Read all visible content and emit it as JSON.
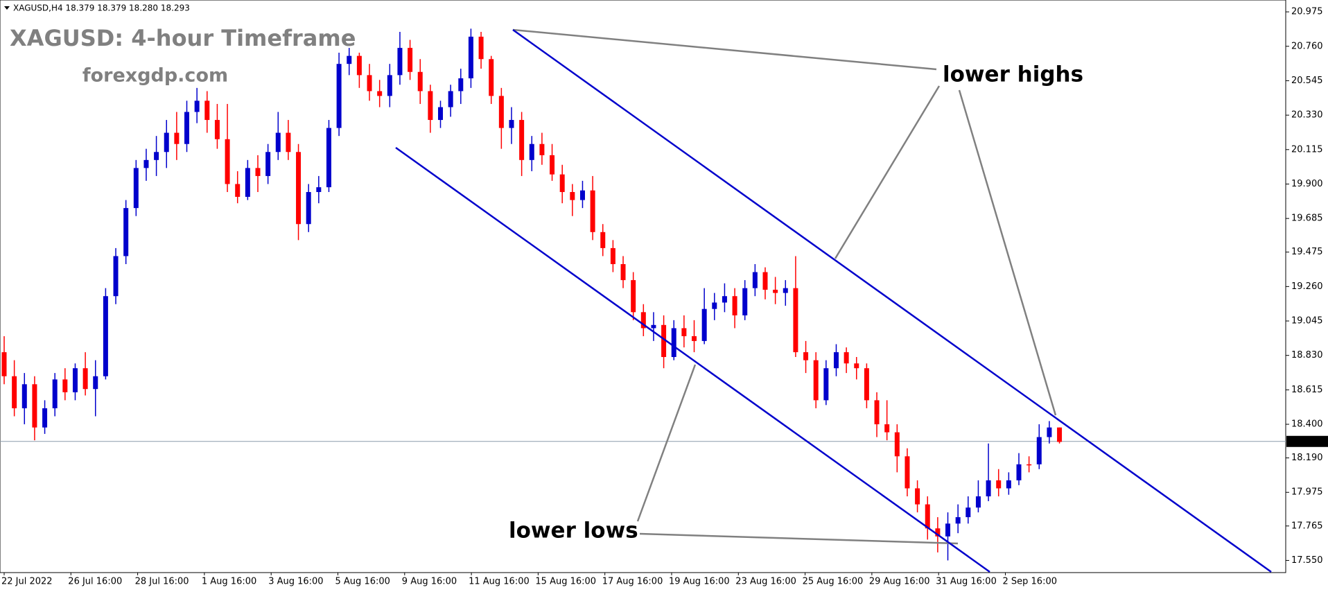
{
  "chart_data": {
    "type": "candlestick",
    "header": "XAGUSD,H4  18.379 18.379 18.280 18.293",
    "title": "XAGUSD: 4-hour Timeframe",
    "subtitle": "forexgdp.com",
    "annotations": [
      "lower highs",
      "lower lows"
    ],
    "up_color": "#0000cc",
    "down_color": "#ff0000",
    "last_price": 18.293,
    "ylim": [
      17.474,
      21.049
    ],
    "yticks": [
      20.975,
      {
        "value": 20.76,
        "label": "20.760"
      },
      20.545,
      {
        "value": 20.33,
        "label": "20.330"
      },
      20.115,
      {
        "value": 19.9,
        "label": "19.900"
      },
      19.685,
      19.475,
      {
        "value": 19.26,
        "label": "19.260"
      },
      19.045,
      {
        "value": 18.83,
        "label": "18.830"
      },
      18.615,
      {
        "value": 18.4,
        "label": "18.400"
      },
      {
        "value": 18.19,
        "label": "18.190"
      },
      17.975,
      17.765,
      {
        "value": 17.55,
        "label": "17.550"
      }
    ],
    "xlabels": [
      "22 Jul 2022",
      "26 Jul 16:00",
      "28 Jul 16:00",
      "1 Aug 16:00",
      "3 Aug 16:00",
      "5 Aug 16:00",
      "9 Aug 16:00",
      "11 Aug 16:00",
      "15 Aug 16:00",
      "17 Aug 16:00",
      "19 Aug 16:00",
      "23 Aug 16:00",
      "25 Aug 16:00",
      "29 Aug 16:00",
      "31 Aug 16:00",
      "2 Sep 16:00"
    ],
    "candles": [
      [
        18.85,
        18.95,
        18.65,
        18.7
      ],
      [
        18.7,
        18.8,
        18.45,
        18.5
      ],
      [
        18.5,
        18.72,
        18.4,
        18.65
      ],
      [
        18.65,
        18.7,
        18.3,
        18.38
      ],
      [
        18.38,
        18.55,
        18.34,
        18.5
      ],
      [
        18.5,
        18.72,
        18.45,
        18.68
      ],
      [
        18.68,
        18.75,
        18.55,
        18.6
      ],
      [
        18.6,
        18.78,
        18.55,
        18.75
      ],
      [
        18.75,
        18.85,
        18.58,
        18.62
      ],
      [
        18.62,
        18.8,
        18.45,
        18.7
      ],
      [
        18.7,
        19.25,
        18.68,
        19.2
      ],
      [
        19.2,
        19.5,
        19.15,
        19.45
      ],
      [
        19.45,
        19.8,
        19.4,
        19.75
      ],
      [
        19.75,
        20.05,
        19.7,
        20.0
      ],
      [
        20.0,
        20.12,
        19.92,
        20.05
      ],
      [
        20.05,
        20.2,
        19.95,
        20.1
      ],
      [
        20.1,
        20.3,
        20.0,
        20.22
      ],
      [
        20.22,
        20.35,
        20.05,
        20.15
      ],
      [
        20.15,
        20.42,
        20.1,
        20.35
      ],
      [
        20.35,
        20.5,
        20.28,
        20.42
      ],
      [
        20.42,
        20.48,
        20.22,
        20.3
      ],
      [
        20.3,
        20.4,
        20.12,
        20.18
      ],
      [
        20.18,
        20.4,
        19.85,
        19.9
      ],
      [
        19.9,
        19.98,
        19.78,
        19.82
      ],
      [
        19.82,
        20.05,
        19.8,
        20.0
      ],
      [
        20.0,
        20.08,
        19.85,
        19.95
      ],
      [
        19.95,
        20.15,
        19.9,
        20.1
      ],
      [
        20.1,
        20.35,
        20.05,
        20.22
      ],
      [
        20.22,
        20.3,
        20.05,
        20.1
      ],
      [
        20.1,
        20.15,
        19.55,
        19.65
      ],
      [
        19.65,
        19.9,
        19.6,
        19.85
      ],
      [
        19.85,
        19.95,
        19.78,
        19.88
      ],
      [
        19.88,
        20.3,
        19.85,
        20.25
      ],
      [
        20.25,
        20.72,
        20.2,
        20.65
      ],
      [
        20.65,
        20.75,
        20.58,
        20.7
      ],
      [
        20.7,
        20.72,
        20.5,
        20.58
      ],
      [
        20.58,
        20.65,
        20.42,
        20.48
      ],
      [
        20.48,
        20.55,
        20.38,
        20.45
      ],
      [
        20.45,
        20.65,
        20.38,
        20.58
      ],
      [
        20.58,
        20.85,
        20.52,
        20.75
      ],
      [
        20.75,
        20.8,
        20.55,
        20.6
      ],
      [
        20.6,
        20.68,
        20.4,
        20.48
      ],
      [
        20.48,
        20.52,
        20.22,
        20.3
      ],
      [
        20.3,
        20.42,
        20.25,
        20.38
      ],
      [
        20.38,
        20.52,
        20.32,
        20.48
      ],
      [
        20.48,
        20.62,
        20.4,
        20.56
      ],
      [
        20.56,
        20.87,
        20.5,
        20.82
      ],
      [
        20.82,
        20.85,
        20.62,
        20.68
      ],
      [
        20.68,
        20.7,
        20.4,
        20.45
      ],
      [
        20.45,
        20.5,
        20.12,
        20.25
      ],
      [
        20.25,
        20.38,
        20.15,
        20.3
      ],
      [
        20.3,
        20.35,
        19.95,
        20.05
      ],
      [
        20.05,
        20.2,
        19.98,
        20.15
      ],
      [
        20.15,
        20.22,
        20.02,
        20.08
      ],
      [
        20.08,
        20.15,
        19.92,
        19.96
      ],
      [
        19.96,
        20.02,
        19.78,
        19.85
      ],
      [
        19.85,
        19.9,
        19.7,
        19.8
      ],
      [
        19.8,
        19.92,
        19.75,
        19.86
      ],
      [
        19.86,
        19.95,
        19.55,
        19.6
      ],
      [
        19.6,
        19.65,
        19.45,
        19.5
      ],
      [
        19.5,
        19.55,
        19.35,
        19.4
      ],
      [
        19.4,
        19.45,
        19.25,
        19.3
      ],
      [
        19.3,
        19.35,
        19.05,
        19.1
      ],
      [
        19.1,
        19.15,
        18.95,
        19.0
      ],
      [
        19.0,
        19.1,
        18.92,
        19.02
      ],
      [
        19.02,
        19.08,
        18.75,
        18.82
      ],
      [
        18.82,
        19.05,
        18.8,
        19.0
      ],
      [
        19.0,
        19.08,
        18.88,
        18.95
      ],
      [
        18.95,
        19.05,
        18.85,
        18.92
      ],
      [
        18.92,
        19.25,
        18.9,
        19.12
      ],
      [
        19.12,
        19.22,
        19.05,
        19.16
      ],
      [
        19.16,
        19.28,
        19.1,
        19.2
      ],
      [
        19.2,
        19.25,
        19.0,
        19.08
      ],
      [
        19.08,
        19.3,
        19.05,
        19.25
      ],
      [
        19.25,
        19.4,
        19.2,
        19.35
      ],
      [
        19.35,
        19.38,
        19.18,
        19.24
      ],
      [
        19.24,
        19.32,
        19.15,
        19.22
      ],
      [
        19.22,
        19.3,
        19.14,
        19.25
      ],
      [
        19.25,
        19.45,
        18.82,
        18.85
      ],
      [
        18.85,
        18.92,
        18.72,
        18.8
      ],
      [
        18.8,
        18.85,
        18.5,
        18.55
      ],
      [
        18.55,
        18.8,
        18.52,
        18.75
      ],
      [
        18.75,
        18.9,
        18.7,
        18.85
      ],
      [
        18.85,
        18.88,
        18.72,
        18.78
      ],
      [
        18.78,
        18.82,
        18.68,
        18.75
      ],
      [
        18.75,
        18.78,
        18.5,
        18.55
      ],
      [
        18.55,
        18.6,
        18.32,
        18.4
      ],
      [
        18.4,
        18.55,
        18.3,
        18.35
      ],
      [
        18.35,
        18.4,
        18.1,
        18.2
      ],
      [
        18.2,
        18.25,
        17.95,
        18.0
      ],
      [
        18.0,
        18.05,
        17.85,
        17.9
      ],
      [
        17.9,
        17.95,
        17.68,
        17.75
      ],
      [
        17.75,
        17.82,
        17.6,
        17.7
      ],
      [
        17.7,
        17.85,
        17.55,
        17.78
      ],
      [
        17.78,
        17.9,
        17.72,
        17.82
      ],
      [
        17.82,
        17.95,
        17.78,
        17.88
      ],
      [
        17.88,
        18.05,
        17.85,
        17.95
      ],
      [
        17.95,
        18.28,
        17.92,
        18.05
      ],
      [
        18.05,
        18.12,
        17.95,
        18.0
      ],
      [
        18.0,
        18.1,
        17.96,
        18.05
      ],
      [
        18.05,
        18.22,
        18.02,
        18.15
      ],
      [
        18.15,
        18.2,
        18.1,
        18.15
      ],
      [
        18.15,
        18.4,
        18.12,
        18.32
      ],
      [
        18.32,
        18.42,
        18.28,
        18.38
      ],
      [
        18.38,
        18.38,
        18.28,
        18.29
      ]
    ]
  }
}
